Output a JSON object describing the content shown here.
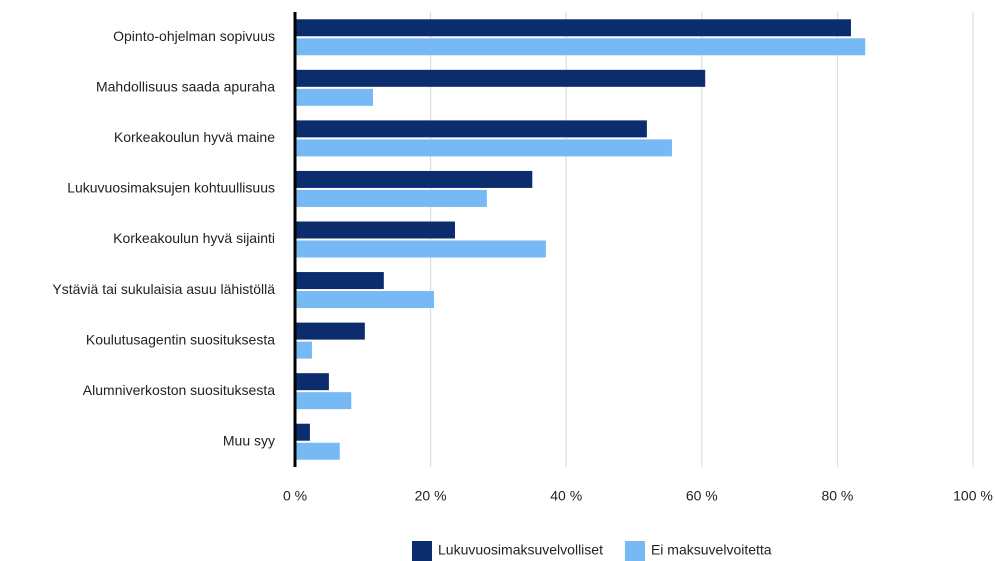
{
  "chart_data": {
    "type": "barh",
    "categories": [
      "Opinto-ohjelman sopivuus",
      "Mahdollisuus saada apuraha",
      "Korkeakoulun hyvä maine",
      "Lukuvuosimaksujen kohtuullisuus",
      "Korkeakoulun hyvä sijainti",
      "Ystäviä tai sukulaisia asuu lähistöllä",
      "Koulutusagentin suosituksesta",
      "Alumniverkoston suosituksesta",
      "Muu syy"
    ],
    "series": [
      {
        "name": "Lukuvuosimaksuvelvolliset",
        "color": "#0b2d6d",
        "values": [
          82.0,
          60.5,
          51.9,
          35.0,
          23.6,
          13.1,
          10.3,
          5.0,
          2.2
        ]
      },
      {
        "name": "Ei maksuvelvoitetta",
        "color": "#77b9f5",
        "values": [
          84.1,
          11.5,
          55.6,
          28.3,
          37.0,
          20.5,
          2.5,
          8.3,
          6.6
        ]
      }
    ],
    "xlim": [
      0,
      100
    ],
    "xticks": [
      {
        "value": 0,
        "label": "0 %"
      },
      {
        "value": 20,
        "label": "20 %"
      },
      {
        "value": 40,
        "label": "40 %"
      },
      {
        "value": 60,
        "label": "60 %"
      },
      {
        "value": 80,
        "label": "80 %"
      },
      {
        "value": 100,
        "label": "100 %"
      }
    ],
    "grid": true,
    "legend": "bottom"
  }
}
